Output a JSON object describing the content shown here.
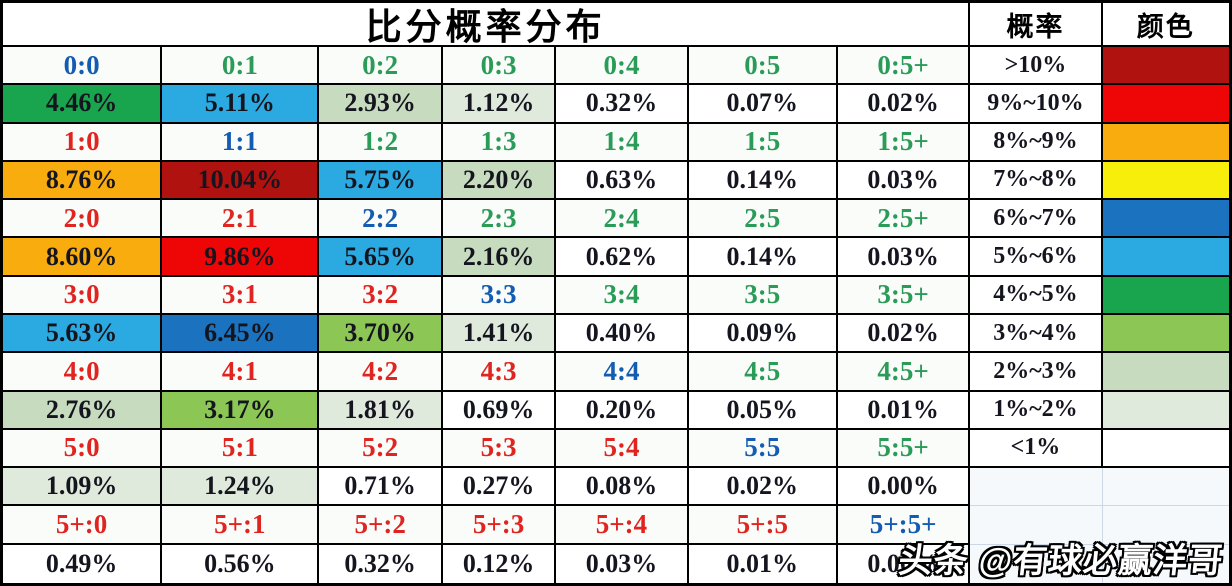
{
  "title": "比分概率分布",
  "watermark": "头条 @有球必赢洋哥",
  "score_text_colors": {
    "home_win": "#e02420",
    "draw": "#135cb1",
    "away_win": "#2b9b58"
  },
  "legend": {
    "prob_header": "概率",
    "color_header": "颜色",
    "entries": [
      {
        "range": ">10%",
        "color": "#b01210"
      },
      {
        "range": "9%~10%",
        "color": "#ee0505"
      },
      {
        "range": "8%~9%",
        "color": "#f9ac0e"
      },
      {
        "range": "7%~8%",
        "color": "#f7ee0c"
      },
      {
        "range": "6%~7%",
        "color": "#1b72bf"
      },
      {
        "range": "5%~6%",
        "color": "#2baae2"
      },
      {
        "range": "4%~5%",
        "color": "#19a44e"
      },
      {
        "range": "3%~4%",
        "color": "#8cc654"
      },
      {
        "range": "2%~3%",
        "color": "#c7dbbf"
      },
      {
        "range": "1%~2%",
        "color": "#dfeadc"
      },
      {
        "range": "<1%",
        "color": "#ffffff"
      }
    ]
  },
  "chart_data": {
    "type": "heatmap",
    "title": "比分概率分布",
    "unit": "%",
    "home_scores": [
      "0",
      "1",
      "2",
      "3",
      "4",
      "5",
      "5+"
    ],
    "away_scores": [
      "0",
      "1",
      "2",
      "3",
      "4",
      "5",
      "5+"
    ],
    "values": [
      [
        4.46,
        5.11,
        2.93,
        1.12,
        0.32,
        0.07,
        0.02
      ],
      [
        8.76,
        10.04,
        5.75,
        2.2,
        0.63,
        0.14,
        0.03
      ],
      [
        8.6,
        9.86,
        5.65,
        2.16,
        0.62,
        0.14,
        0.03
      ],
      [
        5.63,
        6.45,
        3.7,
        1.41,
        0.4,
        0.09,
        0.02
      ],
      [
        2.76,
        3.17,
        1.81,
        0.69,
        0.2,
        0.05,
        0.01
      ],
      [
        1.09,
        1.24,
        0.71,
        0.27,
        0.08,
        0.02,
        0.0
      ],
      [
        0.49,
        0.56,
        0.32,
        0.12,
        0.03,
        0.01,
        0.0
      ]
    ],
    "legend_position": "right",
    "value_color_thresholds": [
      10,
      9,
      8,
      7,
      6,
      5,
      4,
      3,
      2,
      1
    ]
  }
}
